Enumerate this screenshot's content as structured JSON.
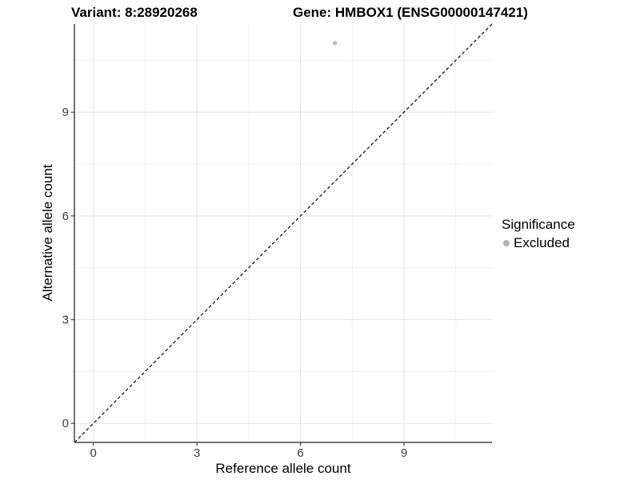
{
  "header": {
    "title_left": "Variant: 8:28920268",
    "title_right": "Gene: HMBOX1 (ENSG00000147421)"
  },
  "axes": {
    "x_label": "Reference allele count",
    "y_label": "Alternative allele count"
  },
  "legend": {
    "title": "Significance",
    "entries": [
      {
        "label": "Excluded",
        "color": "#b3b3b3"
      }
    ]
  },
  "chart_data": {
    "type": "scatter",
    "title": "Variant: 8:28920268 | Gene: HMBOX1 (ENSG00000147421)",
    "xlabel": "Reference allele count",
    "ylabel": "Alternative allele count",
    "x_ticks": [
      0,
      3,
      6,
      9
    ],
    "y_ticks": [
      0,
      3,
      6,
      9
    ],
    "xlim": [
      -0.55,
      11.55
    ],
    "ylim": [
      -0.55,
      11.55
    ],
    "grid": {
      "on": true,
      "major": [
        0,
        3,
        6,
        9
      ],
      "minor": [
        1.5,
        4.5,
        7.5,
        10.5
      ]
    },
    "series": [
      {
        "name": "Excluded",
        "color": "#bdbdbd",
        "points": [
          {
            "x": 7,
            "y": 11
          }
        ]
      }
    ],
    "reference_line": {
      "type": "identity",
      "equation": "y = x",
      "style": "dashed",
      "color": "#000000"
    },
    "legend": {
      "title": "Significance",
      "position": "right",
      "entries": [
        "Excluded"
      ]
    },
    "colors": {
      "grid_major": "#e3e3e3",
      "grid_minor": "#f0f0f0",
      "axis_line": "#474747",
      "tick_text": "#3d3d3d",
      "title_text": "#000000"
    }
  }
}
